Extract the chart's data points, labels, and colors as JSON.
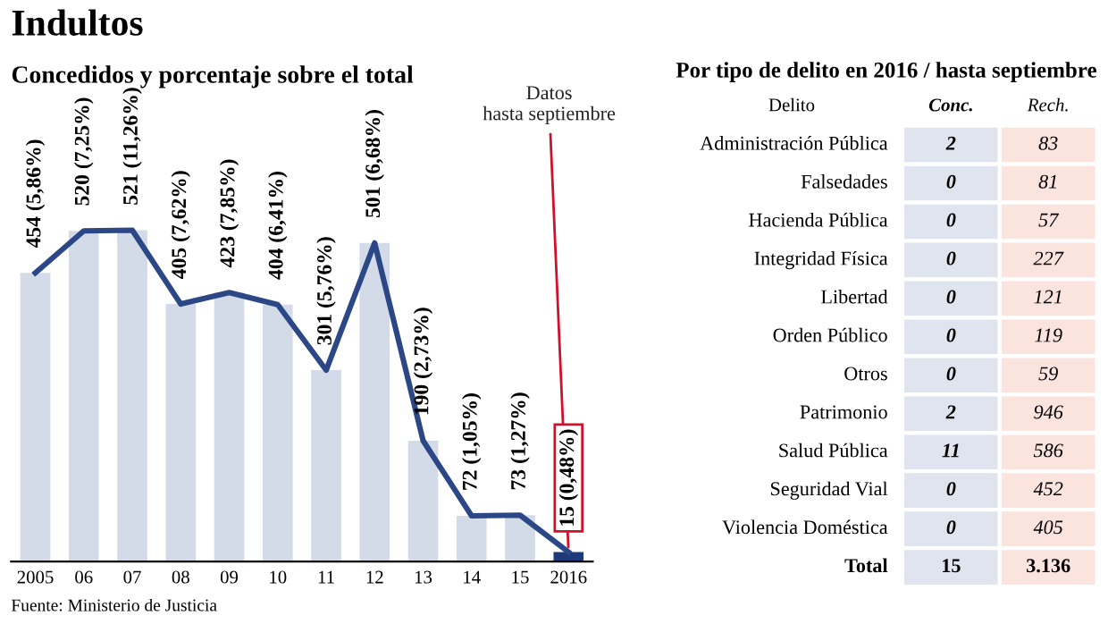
{
  "chart_data": [
    {
      "type": "bar",
      "title": "Indultos",
      "subtitle": "Concedidos y porcentaje sobre el total",
      "categories": [
        "2005",
        "06",
        "07",
        "08",
        "09",
        "10",
        "11",
        "12",
        "13",
        "14",
        "15",
        "2016"
      ],
      "series": [
        {
          "type": "bar",
          "colors": [
            "#d3dae8",
            "#d3dae8",
            "#d3dae8",
            "#d3dae8",
            "#d3dae8",
            "#d3dae8",
            "#d3dae8",
            "#d3dae8",
            "#d3dae8",
            "#d3dae8",
            "#d3dae8",
            "#1f3a78"
          ],
          "values": [
            454,
            520,
            521,
            405,
            423,
            404,
            301,
            501,
            190,
            72,
            73,
            15
          ],
          "value_labels": [
            "454 (5,86%)",
            "520 (7,25%)",
            "521 (11,26%)",
            "405 (7,62%)",
            "423 (7,85%)",
            "404 (6,41%)",
            "301 (5,76%)",
            "501 (6,68%)",
            "190 (2,73%)",
            "72 (1,05%)",
            "73 (1,27%)",
            "15 (0,48%)"
          ]
        },
        {
          "type": "line",
          "color": "#2b4785",
          "values": [
            454,
            520,
            521,
            405,
            423,
            404,
            301,
            501,
            190,
            72,
            73,
            15
          ]
        }
      ],
      "annotations": [
        {
          "text": "Datos hasta septiembre",
          "x": "2016",
          "y": 15
        },
        "Fuente: Ministerio de Justicia"
      ],
      "legend": false
    },
    {
      "type": "heatmap",
      "title": "Por tipo de delito en 2016 / hasta septiembre",
      "ylabel": "Delito",
      "categories": [
        "Conc.",
        "Rech."
      ],
      "y_categories": [
        "Administración Pública",
        "Falsedades",
        "Hacienda Pública",
        "Integridad Física",
        "Libertad",
        "Orden Público",
        "Otros",
        "Patrimonio",
        "Salud Pública",
        "Seguridad Vial",
        "Violencia Doméstica",
        "Total"
      ],
      "cells": [
        [
          2,
          83
        ],
        [
          0,
          81
        ],
        [
          0,
          57
        ],
        [
          0,
          227
        ],
        [
          0,
          121
        ],
        [
          0,
          119
        ],
        [
          0,
          59
        ],
        [
          2,
          946
        ],
        [
          11,
          586
        ],
        [
          0,
          452
        ],
        [
          0,
          405
        ],
        [
          15,
          3136
        ]
      ],
      "cell_labels": [
        [
          "2",
          "83"
        ],
        [
          "0",
          "81"
        ],
        [
          "0",
          "57"
        ],
        [
          "0",
          "227"
        ],
        [
          "0",
          "121"
        ],
        [
          "0",
          "119"
        ],
        [
          "0",
          "59"
        ],
        [
          "2",
          "946"
        ],
        [
          "11",
          "586"
        ],
        [
          "0",
          "452"
        ],
        [
          "0",
          "405"
        ],
        [
          "15",
          "3.136"
        ]
      ],
      "colors": [
        "#dfe4ef",
        "#fbe3de"
      ]
    }
  ]
}
